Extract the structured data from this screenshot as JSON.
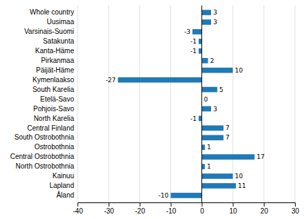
{
  "chart_data": {
    "type": "bar",
    "orientation": "horizontal",
    "categories": [
      "Whole country",
      "Uusimaa",
      "Varsinais-Suomi",
      "Satakunta",
      "Kanta-Häme",
      "Pirkanmaa",
      "Päijät-Häme",
      "Kymenlaakso",
      "South Karelia",
      "Etelä-Savo",
      "Pohjois-Savo",
      "North Karelia",
      "Central Finland",
      "South Ostrobothnia",
      "Ostrobothnia",
      "Central Ostrobothnia",
      "North Ostrobothnia",
      "Kainuu",
      "Lapland",
      "Åland"
    ],
    "values": [
      3,
      3,
      -3,
      -1,
      -1,
      2,
      10,
      -27,
      5,
      0,
      3,
      -1,
      7,
      7,
      1,
      17,
      1,
      10,
      11,
      -10
    ],
    "color": "#1f7ab5",
    "xlim": [
      -40,
      30
    ],
    "xticks": [
      -40,
      -30,
      -20,
      -10,
      0,
      10,
      20,
      30
    ],
    "grid": true,
    "data_labels": true
  }
}
